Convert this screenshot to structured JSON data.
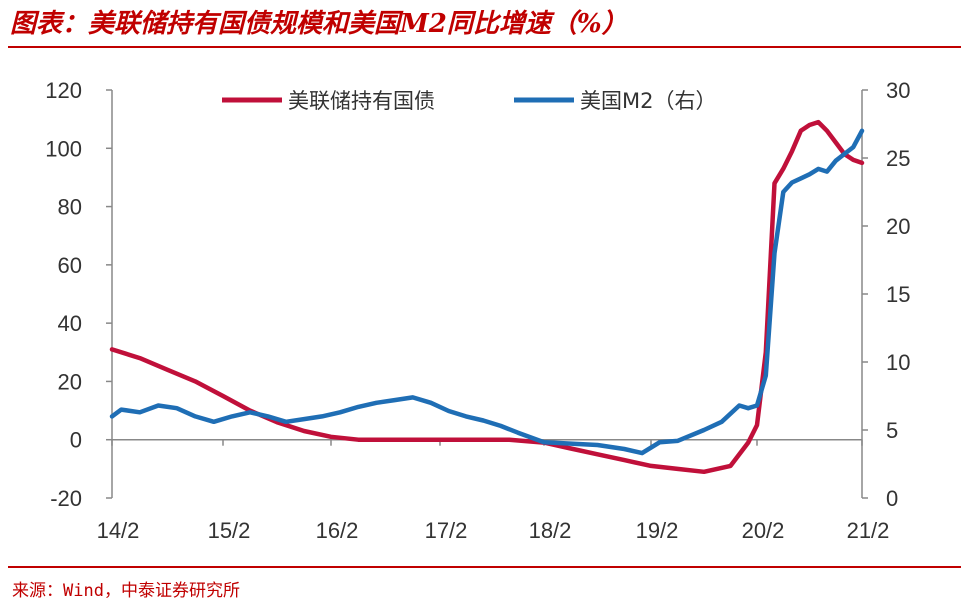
{
  "header": {
    "title": "图表：美联储持有国债规模和美国M2同比增速（%）"
  },
  "footer": {
    "source": "来源：Wind，中泰证券研究所"
  },
  "colors": {
    "accent": "#c00000",
    "series_fed": "#c0103a",
    "series_m2": "#1f6eb5"
  },
  "chart_data": {
    "type": "line",
    "title": "图表：美联储持有国债规模和美国M2同比增速（%）",
    "x_tick_labels": [
      "14/2",
      "15/2",
      "16/2",
      "17/2",
      "18/2",
      "19/2",
      "20/2",
      "21/2"
    ],
    "y_left": {
      "ylim": [
        -20,
        120
      ],
      "ticks": [
        "-20",
        "0",
        "20",
        "40",
        "60",
        "80",
        "100",
        "120"
      ]
    },
    "y_right": {
      "ylim": [
        0,
        30
      ],
      "ticks": [
        "0",
        "5",
        "10",
        "15",
        "20",
        "25",
        "30"
      ]
    },
    "legend_position": "top-center",
    "grid": false,
    "series": [
      {
        "name": "美联储持有国债",
        "axis": "left",
        "color": "#c0103a",
        "points": [
          [
            "2014-02",
            31
          ],
          [
            "2014-05",
            28
          ],
          [
            "2014-08",
            24
          ],
          [
            "2014-11",
            20
          ],
          [
            "2015-02",
            15
          ],
          [
            "2015-05",
            10
          ],
          [
            "2015-08",
            6
          ],
          [
            "2015-11",
            3
          ],
          [
            "2016-02",
            1
          ],
          [
            "2016-05",
            0
          ],
          [
            "2016-08",
            0
          ],
          [
            "2016-11",
            0
          ],
          [
            "2017-02",
            0
          ],
          [
            "2017-06",
            0
          ],
          [
            "2017-10",
            0
          ],
          [
            "2018-02",
            -1
          ],
          [
            "2018-05",
            -3
          ],
          [
            "2018-08",
            -5
          ],
          [
            "2018-11",
            -7
          ],
          [
            "2019-02",
            -9
          ],
          [
            "2019-05",
            -10
          ],
          [
            "2019-08",
            -11
          ],
          [
            "2019-11",
            -9
          ],
          [
            "2020-01",
            -1
          ],
          [
            "2020-02",
            5
          ],
          [
            "2020-03",
            30
          ],
          [
            "2020-04",
            88
          ],
          [
            "2020-05",
            93
          ],
          [
            "2020-06",
            99
          ],
          [
            "2020-07",
            106
          ],
          [
            "2020-08",
            108
          ],
          [
            "2020-09",
            109
          ],
          [
            "2020-10",
            106
          ],
          [
            "2020-11",
            102
          ],
          [
            "2020-12",
            98
          ],
          [
            "2021-01",
            96
          ],
          [
            "2021-02",
            95
          ]
        ]
      },
      {
        "name": "美国M2（右）",
        "axis": "right",
        "color": "#1f6eb5",
        "points": [
          [
            "2014-02",
            6.0
          ],
          [
            "2014-03",
            6.5
          ],
          [
            "2014-05",
            6.3
          ],
          [
            "2014-07",
            6.8
          ],
          [
            "2014-09",
            6.6
          ],
          [
            "2014-11",
            6.0
          ],
          [
            "2015-01",
            5.6
          ],
          [
            "2015-03",
            6.0
          ],
          [
            "2015-05",
            6.3
          ],
          [
            "2015-07",
            6.0
          ],
          [
            "2015-09",
            5.6
          ],
          [
            "2015-11",
            5.8
          ],
          [
            "2016-01",
            6.0
          ],
          [
            "2016-03",
            6.3
          ],
          [
            "2016-05",
            6.7
          ],
          [
            "2016-07",
            7.0
          ],
          [
            "2016-09",
            7.2
          ],
          [
            "2016-11",
            7.4
          ],
          [
            "2017-01",
            7.0
          ],
          [
            "2017-03",
            6.4
          ],
          [
            "2017-05",
            6.0
          ],
          [
            "2017-07",
            5.7
          ],
          [
            "2017-09",
            5.3
          ],
          [
            "2017-11",
            4.8
          ],
          [
            "2018-02",
            4.1
          ],
          [
            "2018-05",
            4.0
          ],
          [
            "2018-08",
            3.9
          ],
          [
            "2018-11",
            3.6
          ],
          [
            "2019-01",
            3.3
          ],
          [
            "2019-03",
            4.1
          ],
          [
            "2019-05",
            4.2
          ],
          [
            "2019-08",
            5.0
          ],
          [
            "2019-10",
            5.6
          ],
          [
            "2019-12",
            6.8
          ],
          [
            "2020-01",
            6.6
          ],
          [
            "2020-02",
            6.8
          ],
          [
            "2020-03",
            9.0
          ],
          [
            "2020-04",
            18.0
          ],
          [
            "2020-05",
            22.5
          ],
          [
            "2020-06",
            23.2
          ],
          [
            "2020-07",
            23.5
          ],
          [
            "2020-08",
            23.8
          ],
          [
            "2020-09",
            24.2
          ],
          [
            "2020-10",
            24.0
          ],
          [
            "2020-11",
            24.8
          ],
          [
            "2020-12",
            25.3
          ],
          [
            "2021-01",
            25.8
          ],
          [
            "2021-02",
            27.0
          ]
        ]
      }
    ]
  }
}
